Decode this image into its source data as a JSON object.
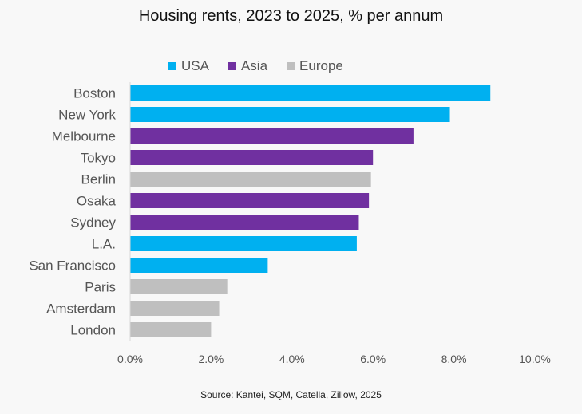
{
  "chart_data": {
    "type": "bar",
    "orientation": "horizontal",
    "title": "Housing rents, 2023 to 2025, % per annum",
    "source": "Source: Kantei, SQM, Catella, Zillow, 2025",
    "xlim": [
      0,
      10
    ],
    "x_ticks": [
      0,
      2,
      4,
      6,
      8,
      10
    ],
    "x_tick_labels": [
      "0.0%",
      "2.0%",
      "4.0%",
      "6.0%",
      "8.0%",
      "10.0%"
    ],
    "legend": [
      {
        "name": "USA",
        "color": "#00b0f0"
      },
      {
        "name": "Asia",
        "color": "#7030a0"
      },
      {
        "name": "Europe",
        "color": "#bfbfbf"
      }
    ],
    "legend_position": "top",
    "grid": false,
    "categories": [
      "Boston",
      "New York",
      "Melbourne",
      "Tokyo",
      "Berlin",
      "Osaka",
      "Sydney",
      "L.A.",
      "San Francisco",
      "Paris",
      "Amsterdam",
      "London"
    ],
    "values": [
      8.9,
      7.9,
      7.0,
      6.0,
      5.95,
      5.9,
      5.65,
      5.6,
      3.4,
      2.4,
      2.2,
      2.0
    ],
    "groups": [
      "USA",
      "USA",
      "Asia",
      "Asia",
      "Europe",
      "Asia",
      "Asia",
      "USA",
      "USA",
      "Europe",
      "Europe",
      "Europe"
    ]
  }
}
